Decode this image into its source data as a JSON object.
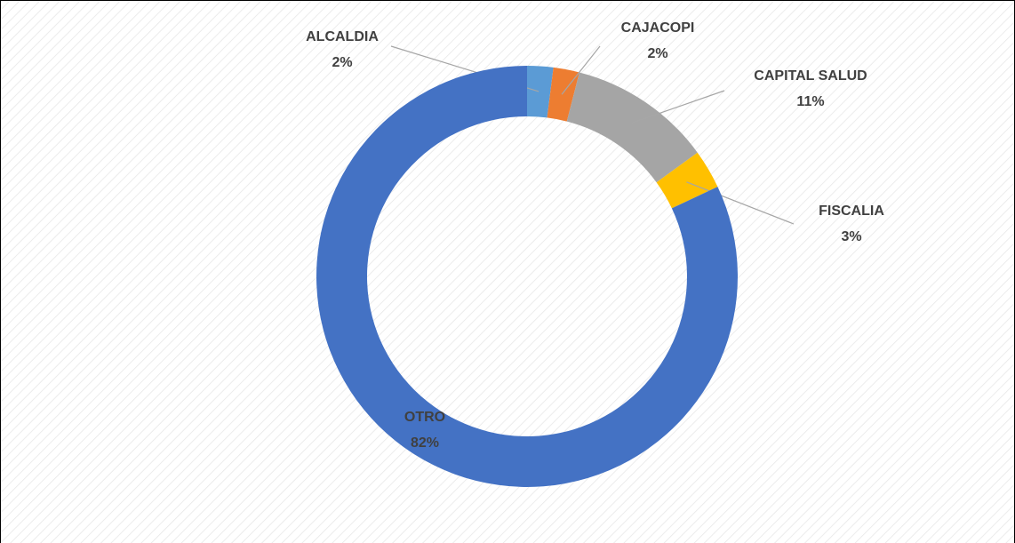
{
  "chart_data": {
    "type": "donut",
    "categories": [
      "ALCALDIA",
      "CAJACOPI",
      "CAPITAL SALUD",
      "FISCALIA",
      "OTRO"
    ],
    "values": [
      2,
      2,
      11,
      3,
      82
    ],
    "value_labels": [
      "2%",
      "2%",
      "11%",
      "3%",
      "82%"
    ],
    "colors": [
      "#5b9bd5",
      "#ed7d31",
      "#a5a5a5",
      "#ffc000",
      "#4472c4"
    ]
  }
}
